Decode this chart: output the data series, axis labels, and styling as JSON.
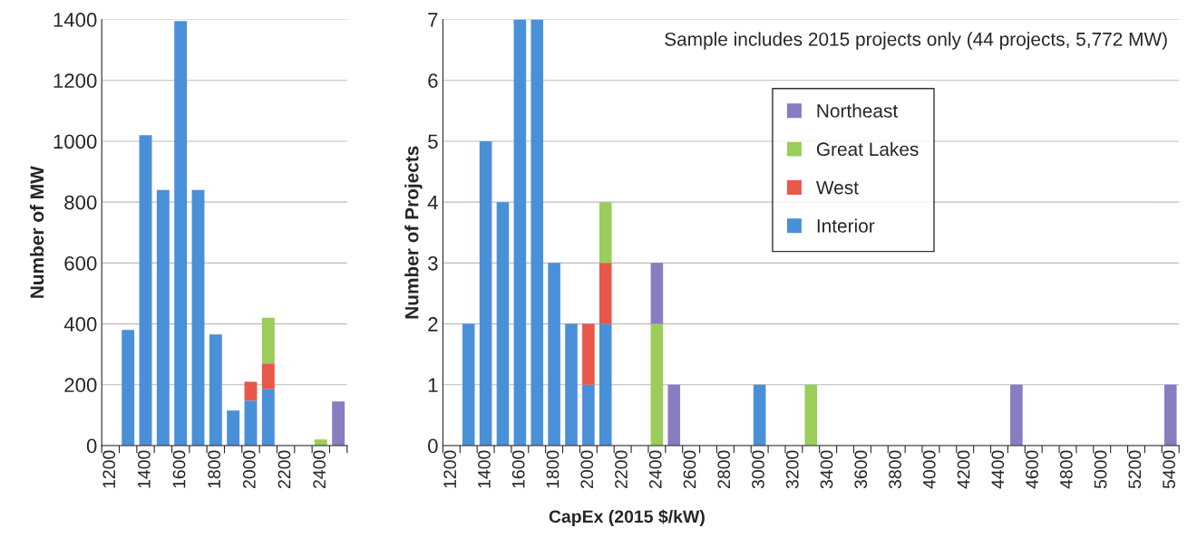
{
  "chart_data": [
    {
      "type": "bar",
      "stacked": true,
      "ylabel": "Number of MW",
      "categories": [
        "1200",
        null,
        "1400",
        null,
        "1600",
        null,
        "1800",
        null,
        "2000",
        null,
        "2200",
        null,
        "2400",
        null
      ],
      "series": [
        {
          "color": "#4a90d9",
          "values": [
            null,
            380,
            1020,
            840,
            1395,
            840,
            365,
            115,
            148,
            185,
            null,
            null,
            null,
            null
          ]
        },
        {
          "color": "#e8584a",
          "values": [
            null,
            null,
            null,
            null,
            null,
            null,
            null,
            null,
            62,
            85,
            null,
            null,
            null,
            null
          ]
        },
        {
          "color": "#9acd5a",
          "values": [
            null,
            null,
            null,
            null,
            null,
            null,
            null,
            null,
            null,
            150,
            null,
            null,
            20,
            null
          ]
        },
        {
          "color": "#8a7cc0",
          "values": [
            null,
            null,
            null,
            null,
            null,
            null,
            null,
            null,
            null,
            null,
            null,
            null,
            null,
            145
          ]
        }
      ],
      "ylim": [
        0,
        1400
      ],
      "yticks": [
        0,
        200,
        400,
        600,
        800,
        1000,
        1200,
        1400
      ],
      "grid": "y"
    },
    {
      "type": "bar",
      "stacked": true,
      "ylabel": "Number of Projects",
      "xlabel": "CapEx (2015 $/kW)",
      "annotations": [
        "Sample includes 2015 projects only (44 projects, 5,772 MW)"
      ],
      "categories": [
        "1200",
        null,
        "1400",
        null,
        "1600",
        null,
        "1800",
        null,
        "2000",
        null,
        "2200",
        null,
        "2400",
        null,
        "2600",
        null,
        "2800",
        null,
        "3000",
        null,
        "3200",
        null,
        "3400",
        null,
        "3600",
        null,
        "3800",
        null,
        "4000",
        null,
        "4200",
        null,
        "4400",
        null,
        "4600",
        null,
        "4800",
        null,
        "5000",
        null,
        "5200",
        null,
        "5400"
      ],
      "series": [
        {
          "name": "Interior",
          "color": "#4a90d9",
          "values": [
            null,
            2,
            5,
            4,
            7,
            7,
            3,
            2,
            1,
            2,
            null,
            null,
            null,
            null,
            null,
            null,
            null,
            null,
            1,
            null,
            null,
            null,
            null,
            null,
            null,
            null,
            null,
            null,
            null,
            null,
            null,
            null,
            null,
            null,
            null,
            null,
            null,
            null,
            null,
            null,
            null,
            null,
            null
          ]
        },
        {
          "name": "West",
          "color": "#e8584a",
          "values": [
            null,
            null,
            null,
            null,
            null,
            null,
            null,
            null,
            1,
            1,
            null,
            null,
            null,
            null,
            null,
            null,
            null,
            null,
            null,
            null,
            null,
            null,
            null,
            null,
            null,
            null,
            null,
            null,
            null,
            null,
            null,
            null,
            null,
            null,
            null,
            null,
            null,
            null,
            null,
            null,
            null,
            null,
            null
          ]
        },
        {
          "name": "Great Lakes",
          "color": "#9acd5a",
          "values": [
            null,
            null,
            null,
            null,
            null,
            null,
            null,
            null,
            null,
            1,
            null,
            null,
            2,
            null,
            null,
            null,
            null,
            null,
            null,
            null,
            null,
            1,
            null,
            null,
            null,
            null,
            null,
            null,
            null,
            null,
            null,
            null,
            null,
            null,
            null,
            null,
            null,
            null,
            null,
            null,
            null,
            null,
            null
          ]
        },
        {
          "name": "Northeast",
          "color": "#8a7cc0",
          "values": [
            null,
            null,
            null,
            null,
            null,
            null,
            null,
            null,
            null,
            null,
            null,
            null,
            1,
            1,
            null,
            null,
            null,
            null,
            null,
            null,
            null,
            null,
            null,
            null,
            null,
            null,
            null,
            null,
            null,
            null,
            null,
            null,
            null,
            1,
            null,
            null,
            null,
            null,
            null,
            null,
            null,
            null,
            1
          ]
        }
      ],
      "ylim": [
        0,
        7
      ],
      "yticks": [
        0,
        1,
        2,
        3,
        4,
        5,
        6,
        7
      ],
      "grid": "y",
      "legend": "top right"
    }
  ]
}
